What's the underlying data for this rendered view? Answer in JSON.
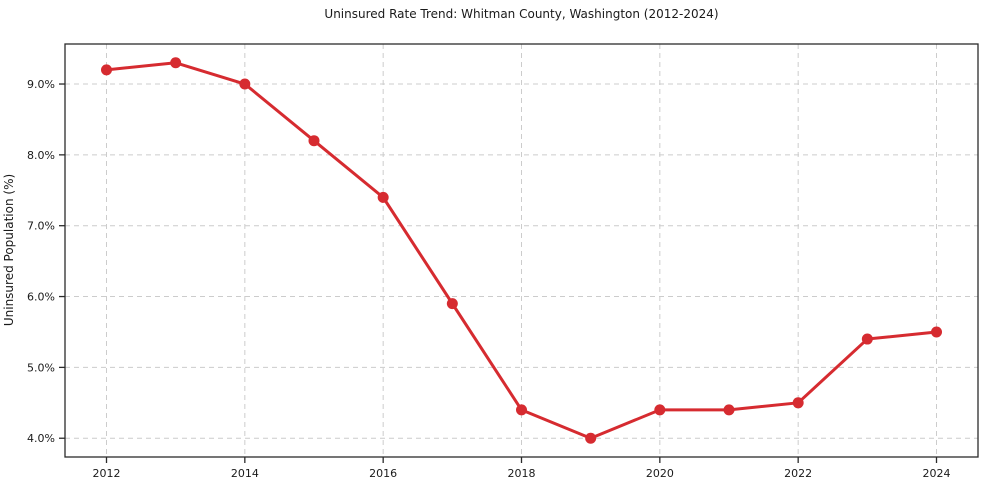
{
  "chart_data": {
    "type": "line",
    "title": "Uninsured Rate Trend: Whitman County, Washington (2012-2024)",
    "xlabel": "",
    "ylabel": "Uninsured Population (%)",
    "x": [
      2012,
      2013,
      2014,
      2015,
      2016,
      2017,
      2018,
      2019,
      2020,
      2021,
      2022,
      2023,
      2024
    ],
    "values": [
      9.2,
      9.3,
      9.0,
      8.2,
      7.4,
      5.9,
      4.4,
      4.0,
      4.4,
      4.4,
      4.5,
      5.4,
      5.5
    ],
    "xlim": [
      2011.4,
      2024.6
    ],
    "ylim": [
      3.735,
      9.565
    ],
    "x_tick_values": [
      2012,
      2014,
      2016,
      2018,
      2020,
      2022,
      2024
    ],
    "x_tick_labels": [
      "2012",
      "2014",
      "2016",
      "2018",
      "2020",
      "2022",
      "2024"
    ],
    "y_tick_values": [
      4.0,
      5.0,
      6.0,
      7.0,
      8.0,
      9.0
    ],
    "y_tick_labels": [
      "4.0%",
      "5.0%",
      "6.0%",
      "7.0%",
      "8.0%",
      "9.0%"
    ],
    "grid": true,
    "legend": "none",
    "colors": {
      "line": "#d62b30",
      "marker": "#d62b30",
      "grid": "#cccccc",
      "spine": "#2b2b2b",
      "tick": "#2b2b2b",
      "text": "#1a1a1a"
    }
  }
}
